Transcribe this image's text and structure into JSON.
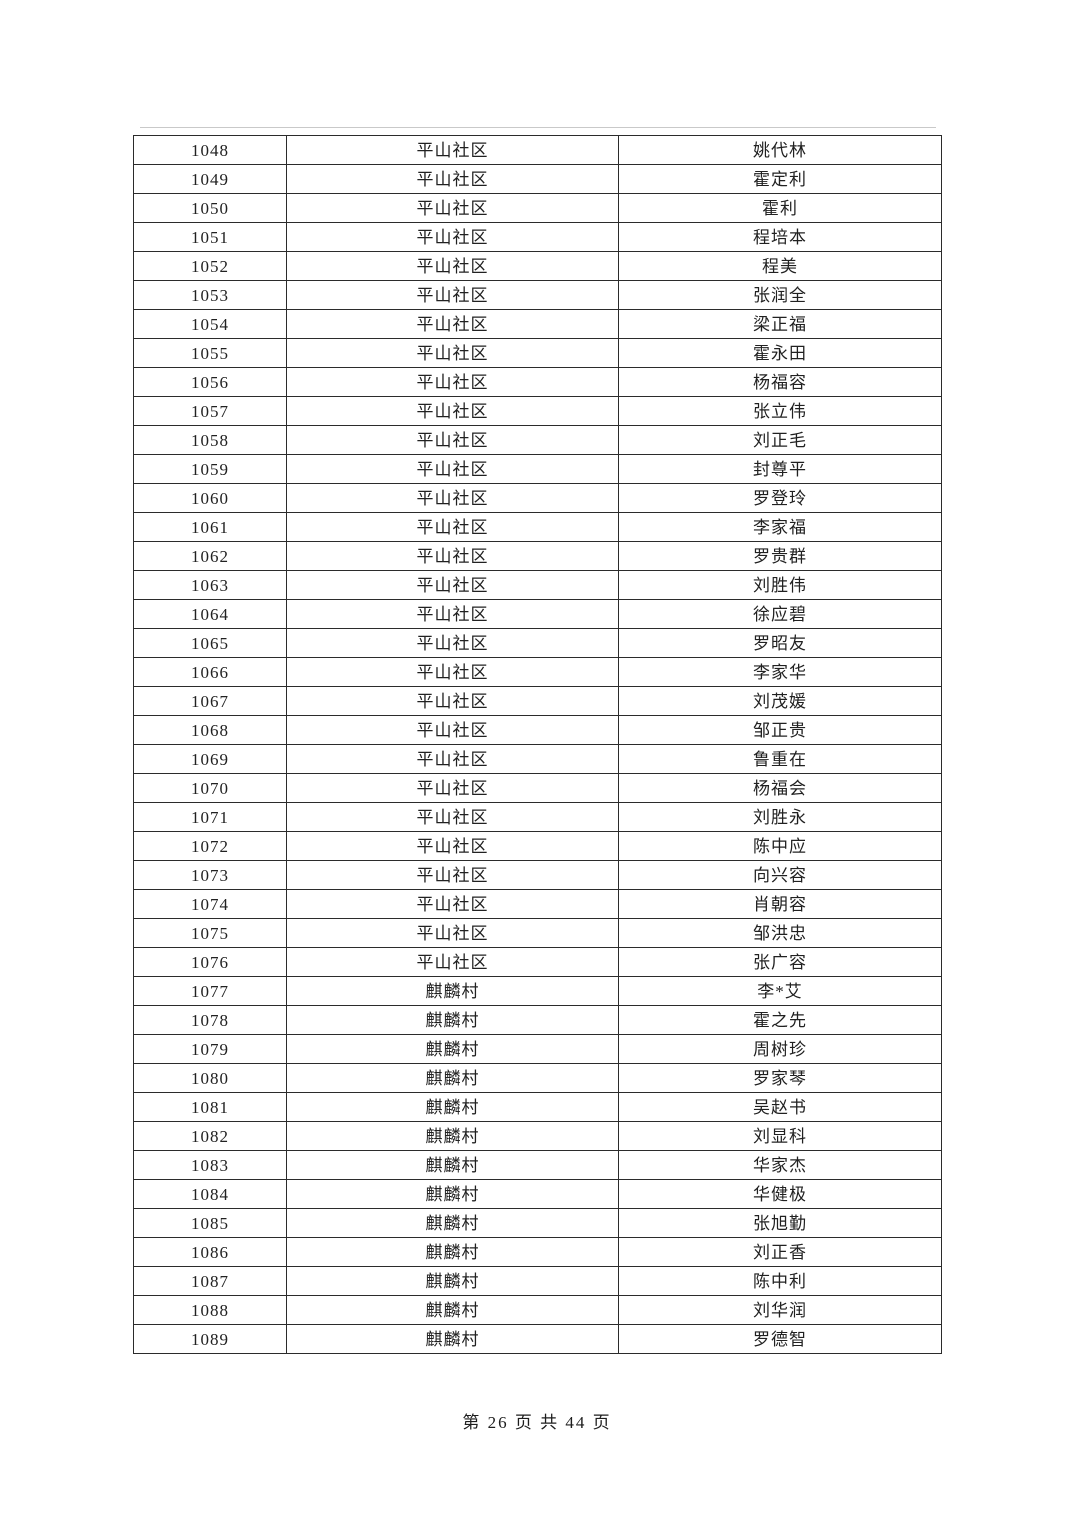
{
  "document": {
    "footer": "第 26 页 共 44 页",
    "page_number": "26",
    "total_pages": "44"
  },
  "colors": {
    "background": "#ffffff",
    "border": "#2b2b2b",
    "text": "#212121"
  },
  "table": {
    "rows": [
      {
        "no": "1048",
        "community": "平山社区",
        "name": "姚代林"
      },
      {
        "no": "1049",
        "community": "平山社区",
        "name": "霍定利"
      },
      {
        "no": "1050",
        "community": "平山社区",
        "name": "霍利"
      },
      {
        "no": "1051",
        "community": "平山社区",
        "name": "程培本"
      },
      {
        "no": "1052",
        "community": "平山社区",
        "name": "程美"
      },
      {
        "no": "1053",
        "community": "平山社区",
        "name": "张润全"
      },
      {
        "no": "1054",
        "community": "平山社区",
        "name": "梁正福"
      },
      {
        "no": "1055",
        "community": "平山社区",
        "name": "霍永田"
      },
      {
        "no": "1056",
        "community": "平山社区",
        "name": "杨福容"
      },
      {
        "no": "1057",
        "community": "平山社区",
        "name": "张立伟"
      },
      {
        "no": "1058",
        "community": "平山社区",
        "name": "刘正毛"
      },
      {
        "no": "1059",
        "community": "平山社区",
        "name": "封尊平"
      },
      {
        "no": "1060",
        "community": "平山社区",
        "name": "罗登玲"
      },
      {
        "no": "1061",
        "community": "平山社区",
        "name": "李家福"
      },
      {
        "no": "1062",
        "community": "平山社区",
        "name": "罗贵群"
      },
      {
        "no": "1063",
        "community": "平山社区",
        "name": "刘胜伟"
      },
      {
        "no": "1064",
        "community": "平山社区",
        "name": "徐应碧"
      },
      {
        "no": "1065",
        "community": "平山社区",
        "name": "罗昭友"
      },
      {
        "no": "1066",
        "community": "平山社区",
        "name": "李家华"
      },
      {
        "no": "1067",
        "community": "平山社区",
        "name": "刘茂媛"
      },
      {
        "no": "1068",
        "community": "平山社区",
        "name": "邹正贵"
      },
      {
        "no": "1069",
        "community": "平山社区",
        "name": "鲁重在"
      },
      {
        "no": "1070",
        "community": "平山社区",
        "name": "杨福会"
      },
      {
        "no": "1071",
        "community": "平山社区",
        "name": "刘胜永"
      },
      {
        "no": "1072",
        "community": "平山社区",
        "name": "陈中应"
      },
      {
        "no": "1073",
        "community": "平山社区",
        "name": "向兴容"
      },
      {
        "no": "1074",
        "community": "平山社区",
        "name": "肖朝容"
      },
      {
        "no": "1075",
        "community": "平山社区",
        "name": "邹洪忠"
      },
      {
        "no": "1076",
        "community": "平山社区",
        "name": "张广容"
      },
      {
        "no": "1077",
        "community": "麒麟村",
        "name": "李*艾"
      },
      {
        "no": "1078",
        "community": "麒麟村",
        "name": "霍之先"
      },
      {
        "no": "1079",
        "community": "麒麟村",
        "name": "周树珍"
      },
      {
        "no": "1080",
        "community": "麒麟村",
        "name": "罗家琴"
      },
      {
        "no": "1081",
        "community": "麒麟村",
        "name": "吴赵书"
      },
      {
        "no": "1082",
        "community": "麒麟村",
        "name": "刘显科"
      },
      {
        "no": "1083",
        "community": "麒麟村",
        "name": "华家杰"
      },
      {
        "no": "1084",
        "community": "麒麟村",
        "name": "华健极"
      },
      {
        "no": "1085",
        "community": "麒麟村",
        "name": "张旭勤"
      },
      {
        "no": "1086",
        "community": "麒麟村",
        "name": "刘正香"
      },
      {
        "no": "1087",
        "community": "麒麟村",
        "name": "陈中利"
      },
      {
        "no": "1088",
        "community": "麒麟村",
        "name": "刘华润"
      },
      {
        "no": "1089",
        "community": "麒麟村",
        "name": "罗德智"
      }
    ]
  }
}
